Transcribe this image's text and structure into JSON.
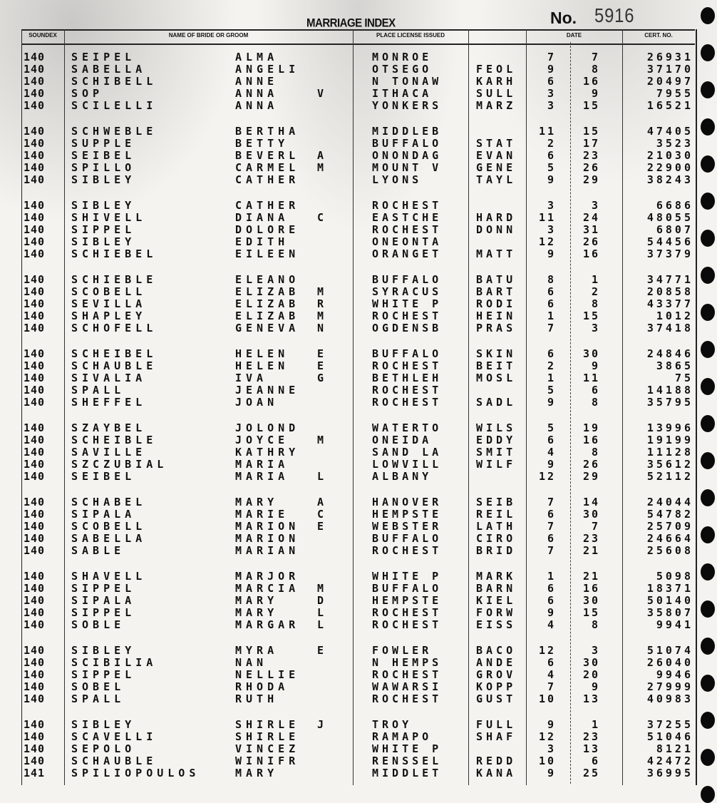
{
  "header": {
    "title": "MARRIAGE INDEX",
    "number_label": "No.",
    "number": "5916",
    "columns": {
      "soundex": "SOUNDEX",
      "name": "NAME OF BRIDE OR GROOM",
      "place": "PLACE LICENSE ISSUED",
      "date": "DATE",
      "cert": "CERT. NO."
    }
  },
  "groups": [
    {
      "rows": [
        [
          "140",
          "SEIPEL",
          "ALMA",
          "",
          "MONROE",
          "",
          "7",
          "7",
          "26931"
        ],
        [
          "140",
          "SABELLA",
          "ANGELI",
          "",
          "OTSEGO",
          "FEOL",
          "9",
          "8",
          "37170"
        ],
        [
          "140",
          "SCHIBELL",
          "ANNE",
          "",
          "N TONAW",
          "KARH",
          "6",
          "16",
          "20497"
        ],
        [
          "140",
          "SOP",
          "ANNA",
          "V",
          "ITHACA",
          "SULL",
          "3",
          "9",
          "7955"
        ],
        [
          "140",
          "SCILELLI",
          "ANNA",
          "",
          "YONKERS",
          "MARZ",
          "3",
          "15",
          "16521"
        ]
      ]
    },
    {
      "rows": [
        [
          "140",
          "SCHWEBLE",
          "BERTHA",
          "",
          "MIDDLEB",
          "",
          "11",
          "15",
          "47405"
        ],
        [
          "140",
          "SUPPLE",
          "BETTY",
          "",
          "BUFFALO",
          "STAT",
          "2",
          "17",
          "3523"
        ],
        [
          "140",
          "SEIBEL",
          "BEVERL",
          "A",
          "ONONDAG",
          "EVAN",
          "6",
          "23",
          "21030"
        ],
        [
          "140",
          "SPILLO",
          "CARMEL",
          "M",
          "MOUNT V",
          "GENE",
          "5",
          "26",
          "22900"
        ],
        [
          "140",
          "SIBLEY",
          "CATHER",
          "",
          "LYONS",
          "TAYL",
          "9",
          "29",
          "38243"
        ]
      ]
    },
    {
      "rows": [
        [
          "140",
          "SIBLEY",
          "CATHER",
          "",
          "ROCHEST",
          "",
          "3",
          "3",
          "6686"
        ],
        [
          "140",
          "SHIVELL",
          "DIANA",
          "C",
          "EASTCHE",
          "HARD",
          "11",
          "24",
          "48055"
        ],
        [
          "140",
          "SIPPEL",
          "DOLORE",
          "",
          "ROCHEST",
          "DONN",
          "3",
          "31",
          "6807"
        ],
        [
          "140",
          "SIBLEY",
          "EDITH",
          "",
          "ONEONTA",
          "",
          "12",
          "26",
          "54456"
        ],
        [
          "140",
          "SCHIEBEL",
          "EILEEN",
          "",
          "ORANGET",
          "MATT",
          "9",
          "16",
          "37379"
        ]
      ]
    },
    {
      "rows": [
        [
          "140",
          "SCHIEBLE",
          "ELEANO",
          "",
          "BUFFALO",
          "BATU",
          "8",
          "1",
          "34771"
        ],
        [
          "140",
          "SCOBELL",
          "ELIZAB",
          "M",
          "SYRACUS",
          "BART",
          "6",
          "2",
          "20858"
        ],
        [
          "140",
          "SEVILLA",
          "ELIZAB",
          "R",
          "WHITE P",
          "RODI",
          "6",
          "8",
          "43377"
        ],
        [
          "140",
          "SHAPLEY",
          "ELIZAB",
          "M",
          "ROCHEST",
          "HEIN",
          "1",
          "15",
          "1012"
        ],
        [
          "140",
          "SCHOFELL",
          "GENEVA",
          "N",
          "OGDENSB",
          "PRAS",
          "7",
          "3",
          "37418"
        ]
      ]
    },
    {
      "rows": [
        [
          "140",
          "SCHEIBEL",
          "HELEN",
          "E",
          "BUFFALO",
          "SKIN",
          "6",
          "30",
          "24846"
        ],
        [
          "140",
          "SCHAUBLE",
          "HELEN",
          "E",
          "ROCHEST",
          "BEIT",
          "2",
          "9",
          "3865"
        ],
        [
          "140",
          "SIVALIA",
          "IVA",
          "G",
          "BETHLEH",
          "MOSL",
          "1",
          "11",
          "75"
        ],
        [
          "140",
          "SPALL",
          "JEANNE",
          "",
          "ROCHEST",
          "",
          "5",
          "6",
          "14188"
        ],
        [
          "140",
          "SHEFFEL",
          "JOAN",
          "",
          "ROCHEST",
          "SADL",
          "9",
          "8",
          "35795"
        ]
      ]
    },
    {
      "rows": [
        [
          "140",
          "SZAYBEL",
          "JOLOND",
          "",
          "WATERTO",
          "WILS",
          "5",
          "19",
          "13996"
        ],
        [
          "140",
          "SCHEIBLE",
          "JOYCE",
          "M",
          "ONEIDA",
          "EDDY",
          "6",
          "16",
          "19199"
        ],
        [
          "140",
          "SAVILLE",
          "KATHRY",
          "",
          "SAND LA",
          "SMIT",
          "4",
          "8",
          "11128"
        ],
        [
          "140",
          "SZCZUBIAL",
          "MARIA",
          "",
          "LOWVILL",
          "WILF",
          "9",
          "26",
          "35612"
        ],
        [
          "140",
          "SEIBEL",
          "MARIA",
          "L",
          "ALBANY",
          "",
          "12",
          "29",
          "52112"
        ]
      ]
    },
    {
      "rows": [
        [
          "140",
          "SCHABEL",
          "MARY",
          "A",
          "HANOVER",
          "SEIB",
          "7",
          "14",
          "24044"
        ],
        [
          "140",
          "SIPALA",
          "MARIE",
          "C",
          "HEMPSTE",
          "REIL",
          "6",
          "30",
          "54782"
        ],
        [
          "140",
          "SCOBELL",
          "MARION",
          "E",
          "WEBSTER",
          "LATH",
          "7",
          "7",
          "25709"
        ],
        [
          "140",
          "SABELLA",
          "MARION",
          "",
          "BUFFALO",
          "CIRO",
          "6",
          "23",
          "24664"
        ],
        [
          "140",
          "SABLE",
          "MARIAN",
          "",
          "ROCHEST",
          "BRID",
          "7",
          "21",
          "25608"
        ]
      ]
    },
    {
      "rows": [
        [
          "140",
          "SHAVELL",
          "MARJOR",
          "",
          "WHITE P",
          "MARK",
          "1",
          "21",
          "5098"
        ],
        [
          "140",
          "SIPPEL",
          "MARCIA",
          "M",
          "BUFFALO",
          "BARN",
          "6",
          "16",
          "18371"
        ],
        [
          "140",
          "SIPALA",
          "MARY",
          "D",
          "HEMPSTE",
          "KIEL",
          "6",
          "30",
          "50140"
        ],
        [
          "140",
          "SIPPEL",
          "MARY",
          "L",
          "ROCHEST",
          "FORW",
          "9",
          "15",
          "35807"
        ],
        [
          "140",
          "SOBLE",
          "MARGAR",
          "L",
          "ROCHEST",
          "EISS",
          "4",
          "8",
          "9941"
        ]
      ]
    },
    {
      "rows": [
        [
          "140",
          "SIBLEY",
          "MYRA",
          "E",
          "FOWLER",
          "BACO",
          "12",
          "3",
          "51074"
        ],
        [
          "140",
          "SCIBILIA",
          "NAN",
          "",
          "N HEMPS",
          "ANDE",
          "6",
          "30",
          "26040"
        ],
        [
          "140",
          "SIPPEL",
          "NELLIE",
          "",
          "ROCHEST",
          "GROV",
          "4",
          "20",
          "9946"
        ],
        [
          "140",
          "SOBEL",
          "RHODA",
          "",
          "WAWARSI",
          "KOPP",
          "7",
          "9",
          "27999"
        ],
        [
          "140",
          "SPALL",
          "RUTH",
          "",
          "ROCHEST",
          "GUST",
          "10",
          "13",
          "40983"
        ]
      ]
    },
    {
      "rows": [
        [
          "140",
          "SIBLEY",
          "SHIRLE",
          "J",
          "TROY",
          "FULL",
          "9",
          "1",
          "37255"
        ],
        [
          "140",
          "SCAVELLI",
          "SHIRLE",
          "",
          "RAMAPO",
          "SHAF",
          "12",
          "23",
          "51046"
        ],
        [
          "140",
          "SEPOLO",
          "VINCEZ",
          "",
          "WHITE P",
          "",
          "3",
          "13",
          "8121"
        ],
        [
          "140",
          "SCHAUBLE",
          "WINIFR",
          "",
          "RENSSEL",
          "REDD",
          "10",
          "6",
          "42472"
        ],
        [
          "141",
          "SPILIOPOULOS",
          "MARY",
          "",
          "MIDDLET",
          "KANA",
          "9",
          "25",
          "36995"
        ]
      ]
    }
  ]
}
